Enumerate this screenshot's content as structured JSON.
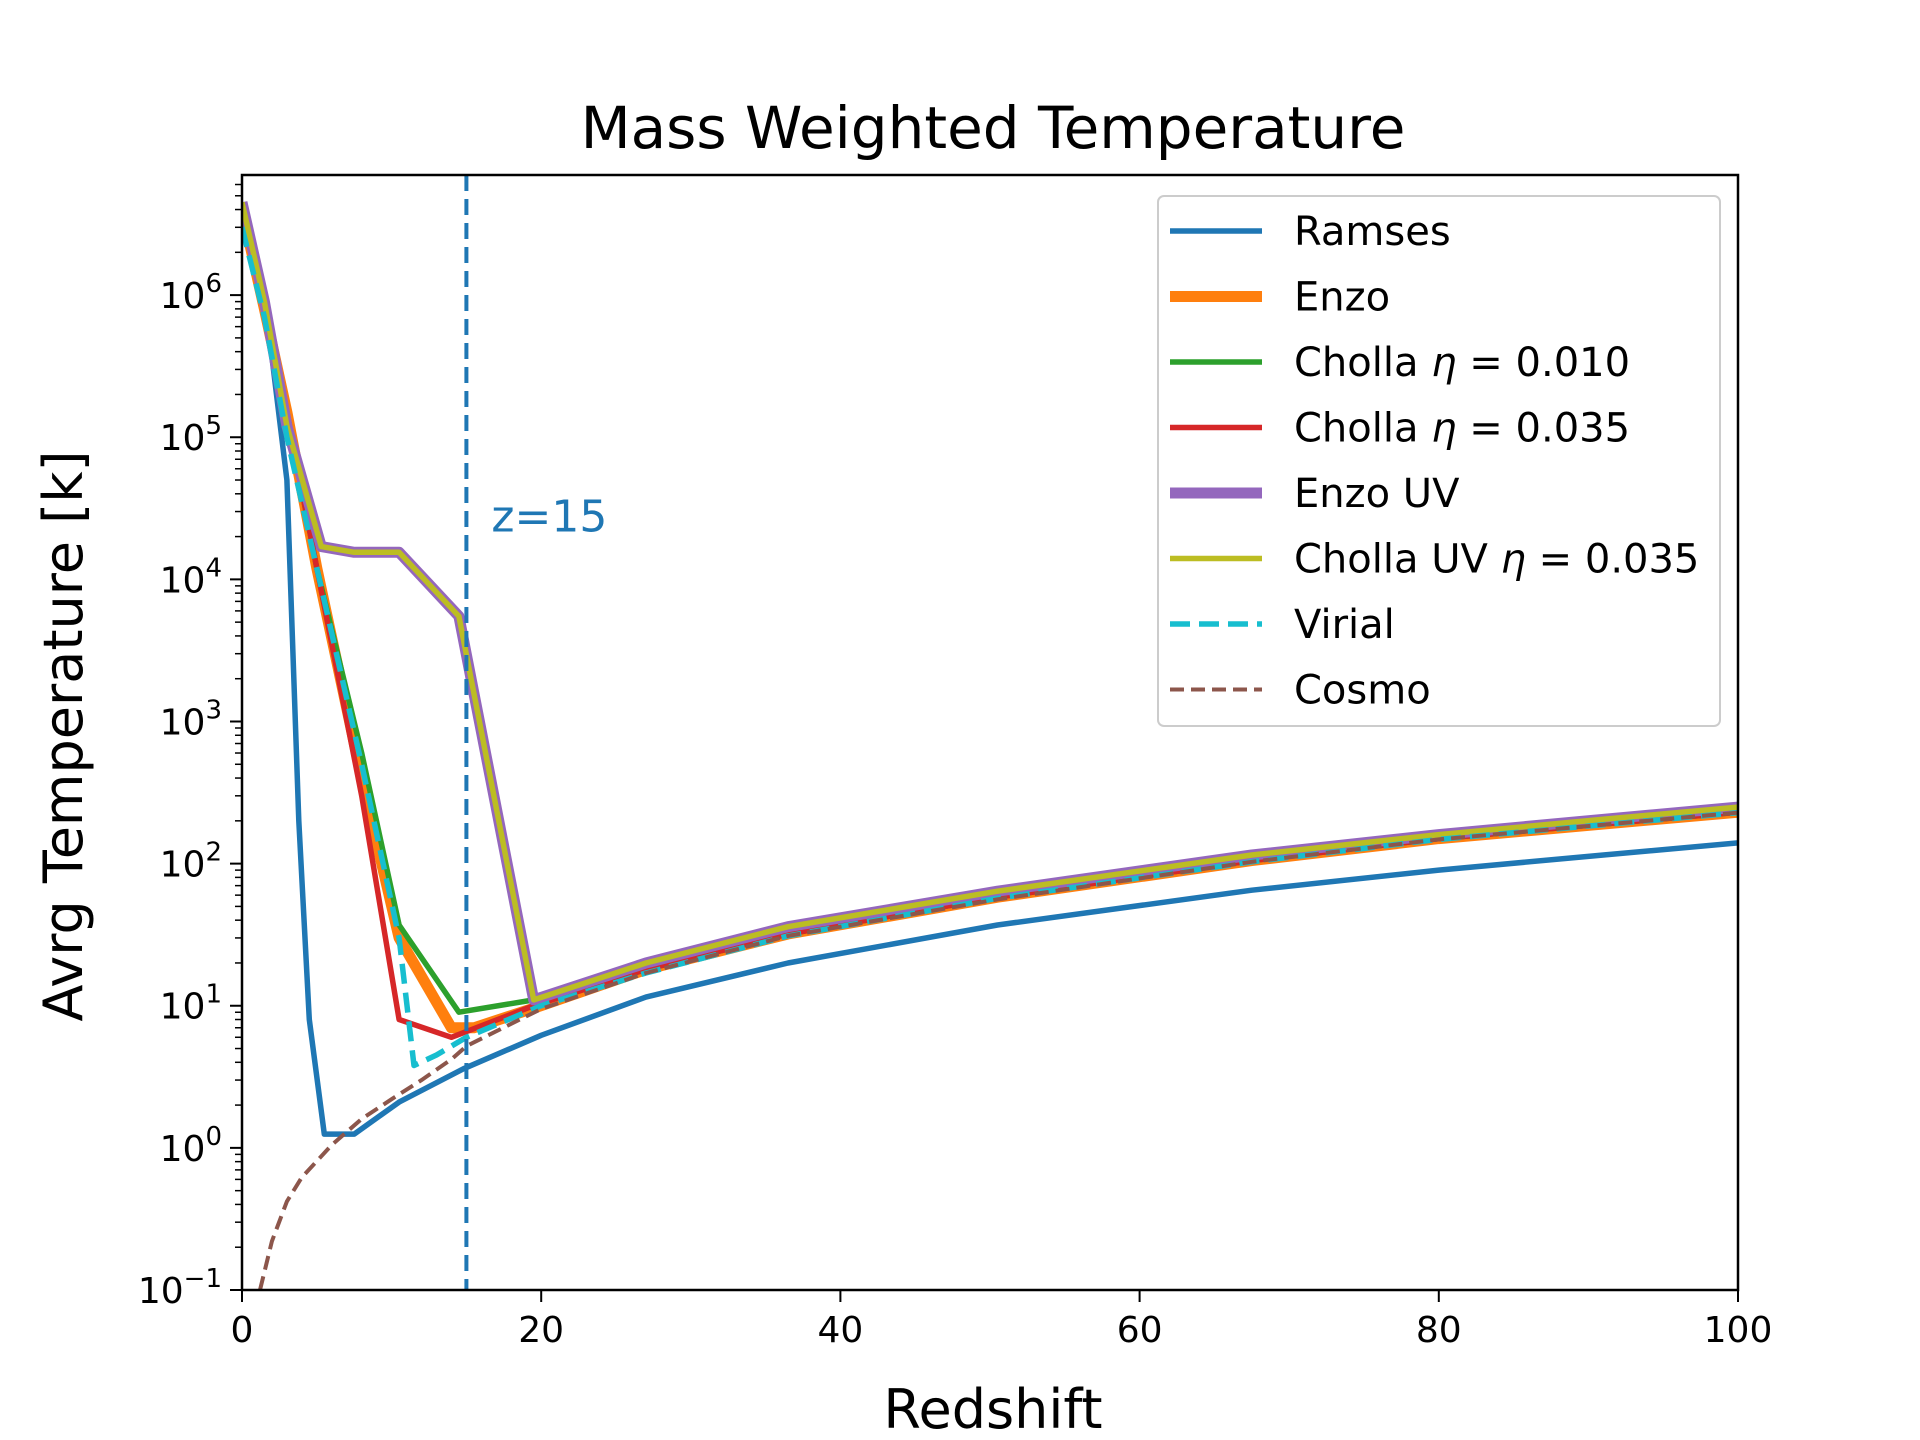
{
  "chart_data": {
    "type": "line",
    "title": "Mass Weighted Temperature",
    "xlabel": "Redshift",
    "ylabel": "Avrg Temperature [k]",
    "xlim": [
      0,
      100
    ],
    "ylim": [
      0.1,
      7000000
    ],
    "yscale": "log",
    "grid": false,
    "legend_position": "top-right",
    "x_ticks": [
      "0",
      "20",
      "40",
      "60",
      "80",
      "100"
    ],
    "y_ticks": [
      {
        "base": "10",
        "exp": "−1",
        "value": 0.1
      },
      {
        "base": "10",
        "exp": "0",
        "value": 1
      },
      {
        "base": "10",
        "exp": "1",
        "value": 10
      },
      {
        "base": "10",
        "exp": "2",
        "value": 100
      },
      {
        "base": "10",
        "exp": "3",
        "value": 1000
      },
      {
        "base": "10",
        "exp": "4",
        "value": 10000
      },
      {
        "base": "10",
        "exp": "5",
        "value": 100000
      },
      {
        "base": "10",
        "exp": "6",
        "value": 1000000
      }
    ],
    "annotation": {
      "text": "z=15",
      "x": 15,
      "color": "#1f77b4"
    },
    "series": [
      {
        "name": "Ramses",
        "color": "#1f77b4",
        "style": "solid",
        "weight": "normal",
        "x": [
          0,
          1.5,
          3,
          3.8,
          4.5,
          5.5,
          7.5,
          10.5,
          14.8,
          20,
          27,
          36.5,
          50.5,
          67.5,
          80,
          91,
          100
        ],
        "y": [
          4000000,
          1000000,
          50000,
          200,
          8,
          1.25,
          1.25,
          2.1,
          3.6,
          6.2,
          11.5,
          20,
          37,
          65,
          90,
          115,
          140
        ]
      },
      {
        "name": "Enzo",
        "color": "#ff7f0e",
        "style": "solid",
        "weight": "thick",
        "x": [
          0,
          1.5,
          3,
          5,
          8,
          10.5,
          14,
          15.5,
          20,
          27,
          36.5,
          50.5,
          67.5,
          80,
          91,
          100
        ],
        "y": [
          4000000,
          800000,
          150000,
          12000,
          400,
          30,
          7,
          7,
          10,
          18,
          32,
          58,
          105,
          150,
          190,
          230
        ]
      },
      {
        "name": "Cholla η = 0.010",
        "color": "#2ca02c",
        "style": "solid",
        "weight": "normal",
        "x": [
          0,
          1.5,
          3,
          5,
          8,
          10.5,
          14.5,
          19.5,
          27,
          36.5,
          50.5,
          67.5,
          80,
          91,
          100
        ],
        "y": [
          4000000,
          800000,
          150000,
          12000,
          600,
          37,
          9,
          11,
          18,
          32,
          58,
          105,
          150,
          190,
          230
        ]
      },
      {
        "name": "Cholla η = 0.035",
        "color": "#d62728",
        "style": "solid",
        "weight": "normal",
        "x": [
          0,
          1.5,
          3,
          5,
          8,
          10.5,
          14,
          19.5,
          27,
          36.5,
          50.5,
          67.5,
          80,
          91,
          100
        ],
        "y": [
          4000000,
          800000,
          150000,
          12000,
          300,
          8,
          6,
          10,
          18,
          32,
          58,
          105,
          150,
          190,
          230
        ]
      },
      {
        "name": "Enzo UV",
        "color": "#9467bd",
        "style": "solid",
        "weight": "thick",
        "x": [
          0,
          1.5,
          3,
          5.3,
          7.5,
          10.5,
          14.5,
          19.5,
          27,
          36.5,
          50.5,
          67.5,
          80,
          91,
          100
        ],
        "y": [
          4500000,
          900000,
          120000,
          17000,
          15500,
          15500,
          5500,
          11,
          20,
          36,
          64,
          115,
          160,
          205,
          250
        ]
      },
      {
        "name": "Cholla UV η = 0.035",
        "color": "#bcbd22",
        "style": "solid",
        "weight": "medium",
        "x": [
          0,
          1.5,
          3,
          5.3,
          7.5,
          10.5,
          14.5,
          19.5,
          27,
          36.5,
          50.5,
          67.5,
          80,
          91,
          100
        ],
        "y": [
          4500000,
          900000,
          120000,
          17000,
          15500,
          15500,
          5500,
          11,
          20,
          36,
          64,
          115,
          160,
          205,
          250
        ]
      },
      {
        "name": "Virial",
        "color": "#17becf",
        "style": "dashed",
        "weight": "normal",
        "x": [
          0,
          1.5,
          3,
          5,
          8,
          10.5,
          11.5,
          13,
          15,
          20,
          27,
          36.5,
          50.5,
          67.5,
          80,
          91,
          100
        ],
        "y": [
          3000000,
          700000,
          100000,
          12000,
          500,
          30,
          3.8,
          4.5,
          6,
          10,
          17,
          31,
          57,
          103,
          148,
          188,
          228
        ]
      },
      {
        "name": "Cosmo",
        "color": "#8c564b",
        "style": "dashed-thin",
        "weight": "thin",
        "x": [
          1.2,
          2,
          3,
          4,
          6,
          8,
          10,
          12,
          14,
          15,
          20,
          27,
          36.5,
          50.5,
          67.5,
          80,
          91,
          100
        ],
        "y": [
          0.1,
          0.22,
          0.42,
          0.62,
          1.05,
          1.6,
          2.2,
          3.0,
          4.2,
          5.2,
          9.5,
          17,
          31,
          56,
          103,
          148,
          188,
          228
        ]
      }
    ],
    "legend": [
      {
        "label_plain": "Ramses",
        "label_sym": "",
        "label_tail": ""
      },
      {
        "label_plain": "Enzo",
        "label_sym": "",
        "label_tail": ""
      },
      {
        "label_plain": "Cholla ",
        "label_sym": "η",
        "label_tail": " = 0.010"
      },
      {
        "label_plain": "Cholla ",
        "label_sym": "η",
        "label_tail": " = 0.035"
      },
      {
        "label_plain": "Enzo UV",
        "label_sym": "",
        "label_tail": ""
      },
      {
        "label_plain": "Cholla UV ",
        "label_sym": "η",
        "label_tail": " = 0.035"
      },
      {
        "label_plain": "Virial",
        "label_sym": "",
        "label_tail": ""
      },
      {
        "label_plain": "Cosmo",
        "label_sym": "",
        "label_tail": ""
      }
    ]
  }
}
